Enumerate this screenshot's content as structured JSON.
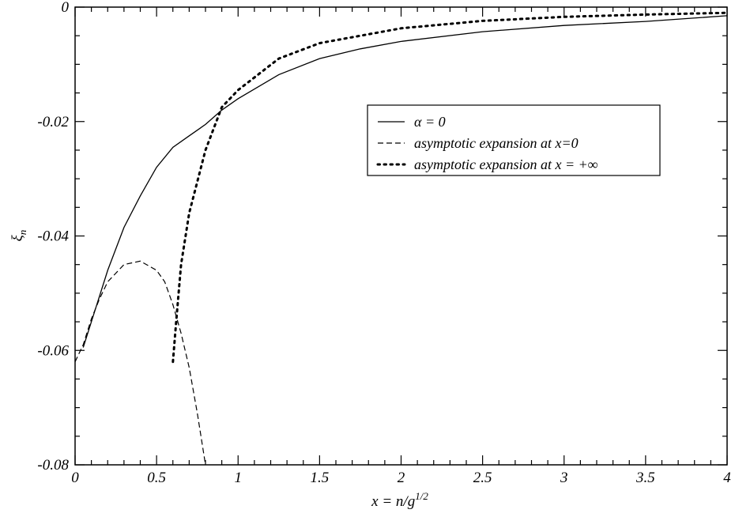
{
  "chart_data": {
    "type": "line",
    "xlabel": "x = n/g",
    "xlabel_superscript": "1/2",
    "ylabel": "ξ",
    "ylabel_subscript": "n",
    "xlim": [
      0,
      4
    ],
    "ylim": [
      -0.08,
      0
    ],
    "xticks": [
      0,
      0.5,
      1,
      1.5,
      2,
      2.5,
      3,
      3.5,
      4
    ],
    "yticks": [
      -0.08,
      -0.06,
      -0.04,
      -0.02,
      0
    ],
    "series": [
      {
        "name": "α = 0",
        "color": "#000000",
        "dash": "solid",
        "x": [
          0.05,
          0.1,
          0.2,
          0.3,
          0.4,
          0.5,
          0.6,
          0.7,
          0.8,
          0.9,
          1,
          1.25,
          1.5,
          1.75,
          2,
          2.5,
          3,
          3.5,
          4
        ],
        "values": [
          -0.0595,
          -0.055,
          -0.046,
          -0.0385,
          -0.033,
          -0.028,
          -0.0245,
          -0.0225,
          -0.0205,
          -0.018,
          -0.016,
          -0.0118,
          -0.009,
          -0.0073,
          -0.006,
          -0.0043,
          -0.0032,
          -0.0025,
          -0.0015
        ]
      },
      {
        "name": "asymptotic expansion at x=0",
        "color": "#000000",
        "dash": "dashed",
        "x": [
          0,
          0.05,
          0.1,
          0.15,
          0.2,
          0.3,
          0.4,
          0.5,
          0.55,
          0.6,
          0.65,
          0.7,
          0.75,
          0.8
        ],
        "values": [
          -0.062,
          -0.059,
          -0.0545,
          -0.051,
          -0.048,
          -0.045,
          -0.0444,
          -0.046,
          -0.048,
          -0.052,
          -0.057,
          -0.063,
          -0.071,
          -0.08
        ]
      },
      {
        "name": "asymptotic expansion at x = +∞",
        "color": "#000000",
        "dash": "dotted",
        "x": [
          0.6,
          0.62,
          0.65,
          0.7,
          0.8,
          0.9,
          1,
          1.25,
          1.5,
          2,
          2.5,
          3,
          3.5,
          4
        ],
        "values": [
          -0.062,
          -0.055,
          -0.045,
          -0.036,
          -0.025,
          -0.0175,
          -0.0145,
          -0.009,
          -0.0063,
          -0.0037,
          -0.0024,
          -0.0017,
          -0.0013,
          -0.001
        ]
      }
    ]
  }
}
